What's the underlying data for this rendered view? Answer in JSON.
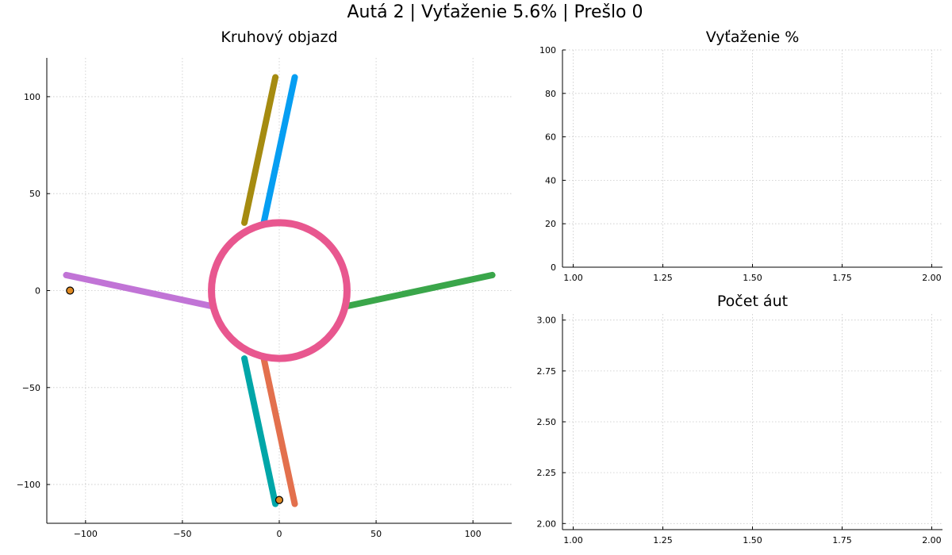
{
  "suptitle": "Autá 2 | Vyťaženie 5.6% | Prešlo 0",
  "chart_data": [
    {
      "id": "roundabout",
      "type": "scatter",
      "title": "Kruhový objazd",
      "xlim": [
        -120,
        120
      ],
      "ylim": [
        -120,
        120
      ],
      "xticks": [
        -100,
        -50,
        0,
        50,
        100
      ],
      "yticks": [
        -100,
        -50,
        0,
        50,
        100
      ],
      "xtick_labels": [
        "−100",
        "−50",
        "0",
        "50",
        "100"
      ],
      "ytick_labels": [
        "−100",
        "−50",
        "0",
        "50",
        "100"
      ],
      "grid": true,
      "ring": {
        "center": [
          0,
          0
        ],
        "radius": 35,
        "color": "#e8578f"
      },
      "roads": [
        {
          "name": "north-in",
          "from": [
            -18,
            35
          ],
          "to": [
            -2,
            110
          ],
          "color": "#a58b10"
        },
        {
          "name": "north-out",
          "from": [
            8,
            110
          ],
          "to": [
            -8,
            35
          ],
          "color": "#069ef2"
        },
        {
          "name": "east-out",
          "from": [
            35,
            -8
          ],
          "to": [
            110,
            8
          ],
          "color": "#3aa64a"
        },
        {
          "name": "south-in",
          "from": [
            -18,
            -35
          ],
          "to": [
            -2,
            -110
          ],
          "color": "#00a6a8"
        },
        {
          "name": "south-out",
          "from": [
            8,
            -110
          ],
          "to": [
            -8,
            -35
          ],
          "color": "#e3704d"
        },
        {
          "name": "west-in",
          "from": [
            -110,
            8
          ],
          "to": [
            -35,
            -8
          ],
          "color": "#c174d6"
        }
      ],
      "cars": [
        {
          "x": -108,
          "y": 0,
          "color": "#e08a22"
        },
        {
          "x": 0,
          "y": -108,
          "color": "#e08a22"
        }
      ]
    },
    {
      "id": "utilization",
      "type": "line",
      "title": "Vyťaženie %",
      "xlim": [
        0.97,
        2.03
      ],
      "ylim": [
        0,
        100
      ],
      "xticks": [
        1.0,
        1.25,
        1.5,
        1.75,
        2.0
      ],
      "yticks": [
        0,
        20,
        40,
        60,
        80,
        100
      ],
      "xtick_labels": [
        "1.00",
        "1.25",
        "1.50",
        "1.75",
        "2.00"
      ],
      "ytick_labels": [
        "0",
        "20",
        "40",
        "60",
        "80",
        "100"
      ],
      "grid": true,
      "series": []
    },
    {
      "id": "car-count",
      "type": "line",
      "title": "Počet áut",
      "xlim": [
        0.97,
        2.03
      ],
      "ylim": [
        1.97,
        3.03
      ],
      "xticks": [
        1.0,
        1.25,
        1.5,
        1.75,
        2.0
      ],
      "yticks": [
        2.0,
        2.25,
        2.5,
        2.75,
        3.0
      ],
      "xtick_labels": [
        "1.00",
        "1.25",
        "1.50",
        "1.75",
        "2.00"
      ],
      "ytick_labels": [
        "2.00",
        "2.25",
        "2.50",
        "2.75",
        "3.00"
      ],
      "grid": true,
      "series": []
    }
  ]
}
